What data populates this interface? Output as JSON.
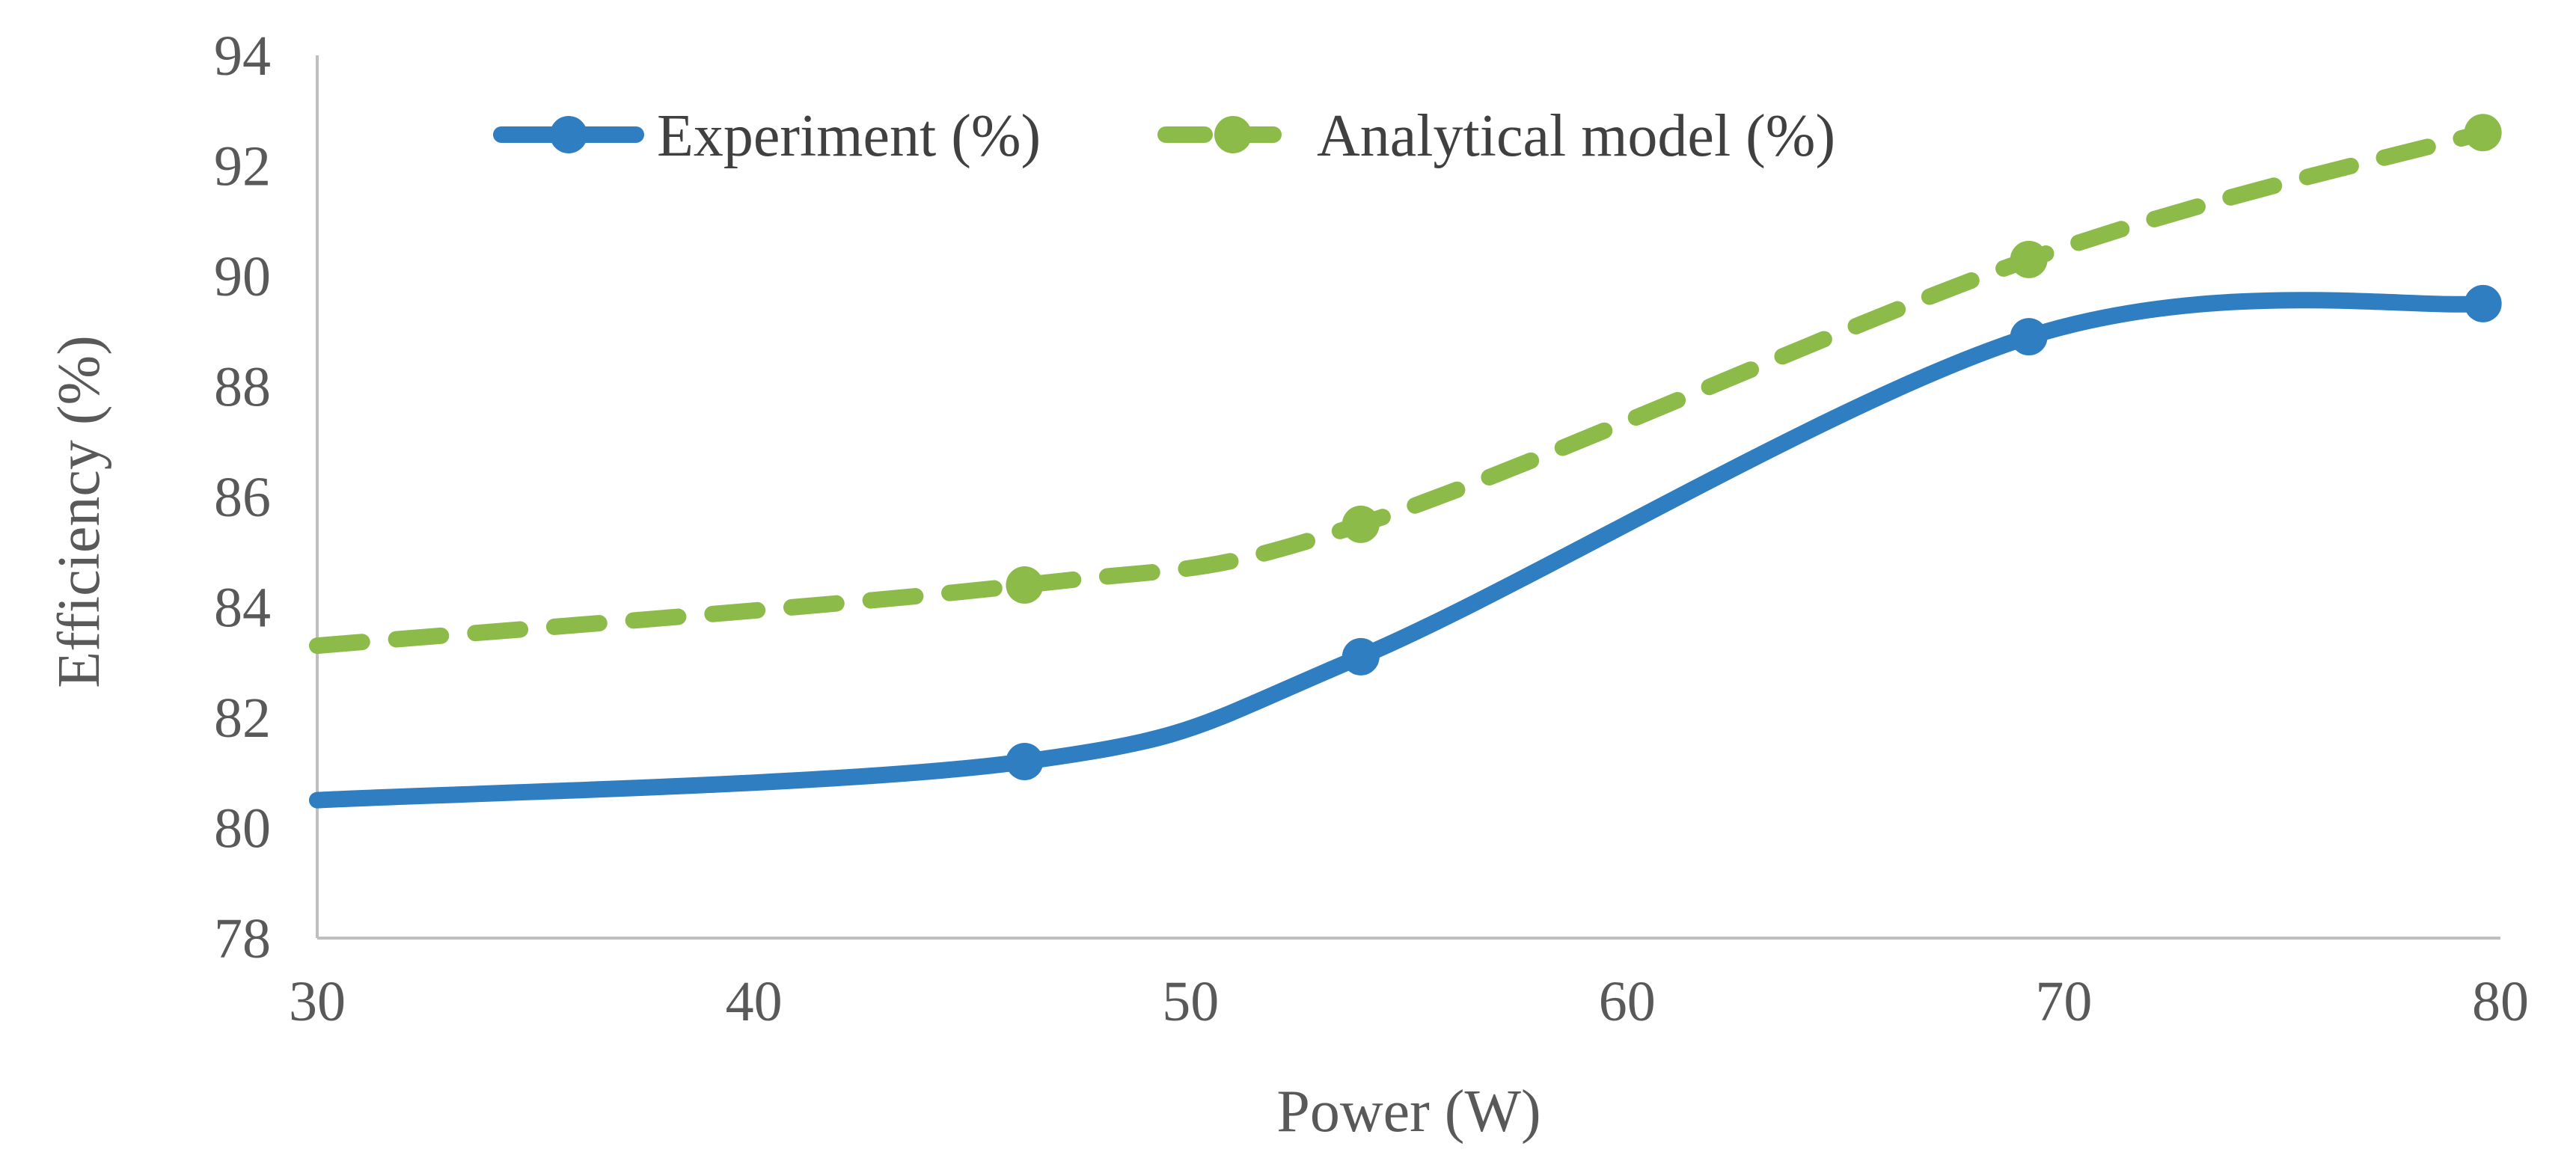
{
  "chart_data": {
    "type": "line",
    "title": "",
    "xlabel": "Power (W)",
    "ylabel": "Efficiency (%)",
    "xlim": [
      30,
      80
    ],
    "ylim": [
      78,
      94
    ],
    "xticks": [
      30,
      40,
      50,
      60,
      70,
      80
    ],
    "yticks": [
      78,
      80,
      82,
      84,
      86,
      88,
      90,
      92,
      94
    ],
    "grid": false,
    "legend_position": "top",
    "series": [
      {
        "name": "Experiment (%)",
        "color": "#2E7EC1",
        "dashed": false,
        "x": [
          30,
          46.2,
          53.9,
          69.2,
          79.6
        ],
        "y": [
          80.5,
          81.2,
          83.1,
          88.9,
          89.5
        ]
      },
      {
        "name": "Analytical model (%)",
        "color": "#8DBB4A",
        "dashed": true,
        "x": [
          30,
          46.2,
          53.9,
          69.2,
          79.6
        ],
        "y": [
          83.3,
          84.4,
          85.5,
          90.3,
          92.6
        ]
      }
    ]
  }
}
